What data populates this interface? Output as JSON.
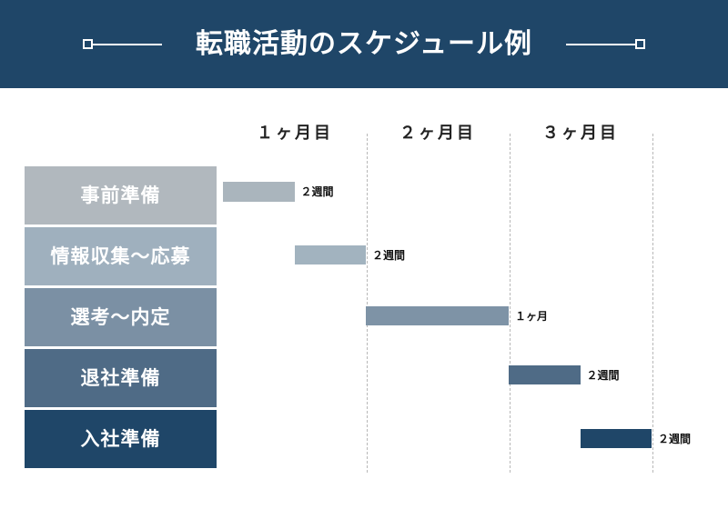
{
  "title": "転職活動のスケジュール例",
  "months": [
    "１ヶ月目",
    "２ヶ月目",
    "３ヶ月目"
  ],
  "phases": [
    {
      "label": "事前準備",
      "start": 0,
      "end": 0.5,
      "duration": "２週間",
      "box_color": "#b1b8be",
      "bar_color": "#aab5bd"
    },
    {
      "label": "情報収集～応募",
      "start": 0.5,
      "end": 1.0,
      "duration": "２週間",
      "box_color": "#9fb0be",
      "bar_color": "#a2b3bf"
    },
    {
      "label": "選考～内定",
      "start": 1.0,
      "end": 2.0,
      "duration": "１ヶ月",
      "box_color": "#7b90a4",
      "bar_color": "#7e93a6"
    },
    {
      "label": "退社準備",
      "start": 2.0,
      "end": 2.5,
      "duration": "２週間",
      "box_color": "#4f6b86",
      "bar_color": "#4f6b86"
    },
    {
      "label": "入社準備",
      "start": 2.5,
      "end": 3.0,
      "duration": "２週間",
      "box_color": "#1f4668",
      "bar_color": "#1f4668"
    }
  ]
}
